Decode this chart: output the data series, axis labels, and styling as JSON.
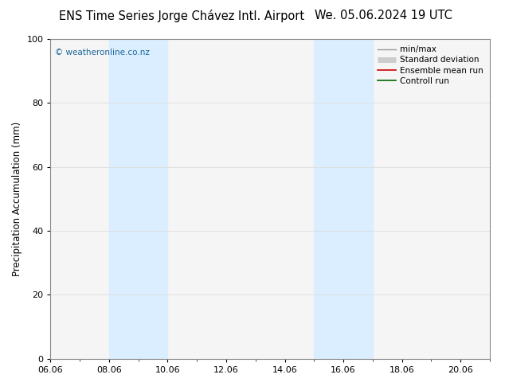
{
  "title_left": "ENS Time Series Jorge Chávez Intl. Airport",
  "title_right": "We. 05.06.2024 19 UTC",
  "ylabel": "Precipitation Accumulation (mm)",
  "watermark": "© weatheronline.co.nz",
  "watermark_color": "#1a6699",
  "ylim": [
    0,
    100
  ],
  "yticks": [
    0,
    20,
    40,
    60,
    80,
    100
  ],
  "xlim": [
    0,
    15
  ],
  "xtick_labels": [
    "06.06",
    "08.06",
    "10.06",
    "12.06",
    "14.06",
    "16.06",
    "18.06",
    "20.06"
  ],
  "xtick_positions": [
    0,
    2,
    4,
    6,
    8,
    10,
    12,
    14
  ],
  "shaded_bands": [
    {
      "x_start": 2,
      "x_end": 4,
      "color": "#daeeff",
      "alpha": 1.0
    },
    {
      "x_start": 9,
      "x_end": 11,
      "color": "#daeeff",
      "alpha": 1.0
    }
  ],
  "legend_entries": [
    {
      "label": "min/max",
      "color": "#999999",
      "lw": 1.0
    },
    {
      "label": "Standard deviation",
      "color": "#cccccc",
      "lw": 5
    },
    {
      "label": "Ensemble mean run",
      "color": "#cc0000",
      "lw": 1.2
    },
    {
      "label": "Controll run",
      "color": "#006600",
      "lw": 1.2
    }
  ],
  "bg_color": "#ffffff",
  "plot_bg_color": "#f5f5f5",
  "spine_color": "#888888",
  "grid_color": "#dddddd",
  "title_fontsize": 10.5,
  "axis_label_fontsize": 8.5,
  "tick_fontsize": 8,
  "legend_fontsize": 7.5,
  "watermark_fontsize": 7.5
}
